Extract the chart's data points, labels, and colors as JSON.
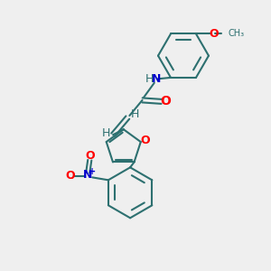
{
  "bg_color": "#efefef",
  "bond_color": "#2d7070",
  "atom_colors": {
    "O": "#ff0000",
    "N": "#0000cc",
    "H": "#2d7070",
    "Nplus": "#0000cc",
    "Ominus": "#ff0000"
  },
  "line_width": 1.5,
  "figsize": [
    3.0,
    3.0
  ],
  "dpi": 100
}
